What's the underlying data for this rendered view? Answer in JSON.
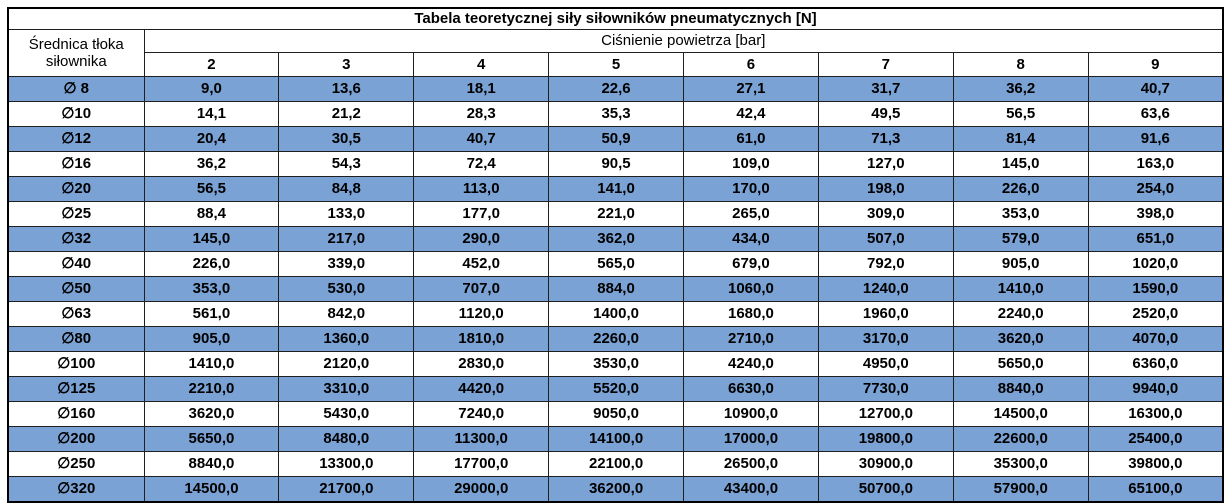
{
  "colors": {
    "row_highlight": "#7aa2d4",
    "border": "#1f1f1f",
    "outer_border": "#000000",
    "text": "#000000",
    "background": "#ffffff"
  },
  "table": {
    "title": "Tabela teoretycznej siły siłowników pneumatycznych [N]",
    "row_header": "Średnica tłoka siłownika",
    "col_group_header": "Ciśnienie powietrza [bar]",
    "pressure_columns": [
      "2",
      "3",
      "4",
      "5",
      "6",
      "7",
      "8",
      "9"
    ],
    "rows": [
      {
        "diameter": "∅ 8",
        "highlighted": true,
        "values": [
          "9,0",
          "13,6",
          "18,1",
          "22,6",
          "27,1",
          "31,7",
          "36,2",
          "40,7"
        ]
      },
      {
        "diameter": "∅10",
        "highlighted": false,
        "values": [
          "14,1",
          "21,2",
          "28,3",
          "35,3",
          "42,4",
          "49,5",
          "56,5",
          "63,6"
        ]
      },
      {
        "diameter": "∅12",
        "highlighted": true,
        "values": [
          "20,4",
          "30,5",
          "40,7",
          "50,9",
          "61,0",
          "71,3",
          "81,4",
          "91,6"
        ]
      },
      {
        "diameter": "∅16",
        "highlighted": false,
        "values": [
          "36,2",
          "54,3",
          "72,4",
          "90,5",
          "109,0",
          "127,0",
          "145,0",
          "163,0"
        ]
      },
      {
        "diameter": "∅20",
        "highlighted": true,
        "values": [
          "56,5",
          "84,8",
          "113,0",
          "141,0",
          "170,0",
          "198,0",
          "226,0",
          "254,0"
        ]
      },
      {
        "diameter": "∅25",
        "highlighted": false,
        "values": [
          "88,4",
          "133,0",
          "177,0",
          "221,0",
          "265,0",
          "309,0",
          "353,0",
          "398,0"
        ]
      },
      {
        "diameter": "∅32",
        "highlighted": true,
        "values": [
          "145,0",
          "217,0",
          "290,0",
          "362,0",
          "434,0",
          "507,0",
          "579,0",
          "651,0"
        ]
      },
      {
        "diameter": "∅40",
        "highlighted": false,
        "values": [
          "226,0",
          "339,0",
          "452,0",
          "565,0",
          "679,0",
          "792,0",
          "905,0",
          "1020,0"
        ]
      },
      {
        "diameter": "∅50",
        "highlighted": true,
        "values": [
          "353,0",
          "530,0",
          "707,0",
          "884,0",
          "1060,0",
          "1240,0",
          "1410,0",
          "1590,0"
        ]
      },
      {
        "diameter": "∅63",
        "highlighted": false,
        "values": [
          "561,0",
          "842,0",
          "1120,0",
          "1400,0",
          "1680,0",
          "1960,0",
          "2240,0",
          "2520,0"
        ]
      },
      {
        "diameter": "∅80",
        "highlighted": true,
        "values": [
          "905,0",
          "1360,0",
          "1810,0",
          "2260,0",
          "2710,0",
          "3170,0",
          "3620,0",
          "4070,0"
        ]
      },
      {
        "diameter": "∅100",
        "highlighted": false,
        "values": [
          "1410,0",
          "2120,0",
          "2830,0",
          "3530,0",
          "4240,0",
          "4950,0",
          "5650,0",
          "6360,0"
        ]
      },
      {
        "diameter": "∅125",
        "highlighted": true,
        "values": [
          "2210,0",
          "3310,0",
          "4420,0",
          "5520,0",
          "6630,0",
          "7730,0",
          "8840,0",
          "9940,0"
        ]
      },
      {
        "diameter": "∅160",
        "highlighted": false,
        "values": [
          "3620,0",
          "5430,0",
          "7240,0",
          "9050,0",
          "10900,0",
          "12700,0",
          "14500,0",
          "16300,0"
        ]
      },
      {
        "diameter": "∅200",
        "highlighted": true,
        "values": [
          "5650,0",
          "8480,0",
          "11300,0",
          "14100,0",
          "17000,0",
          "19800,0",
          "22600,0",
          "25400,0"
        ]
      },
      {
        "diameter": "∅250",
        "highlighted": false,
        "values": [
          "8840,0",
          "13300,0",
          "17700,0",
          "22100,0",
          "26500,0",
          "30900,0",
          "35300,0",
          "39800,0"
        ]
      },
      {
        "diameter": "∅320",
        "highlighted": true,
        "values": [
          "14500,0",
          "21700,0",
          "29000,0",
          "36200,0",
          "43400,0",
          "50700,0",
          "57900,0",
          "65100,0"
        ]
      }
    ]
  }
}
